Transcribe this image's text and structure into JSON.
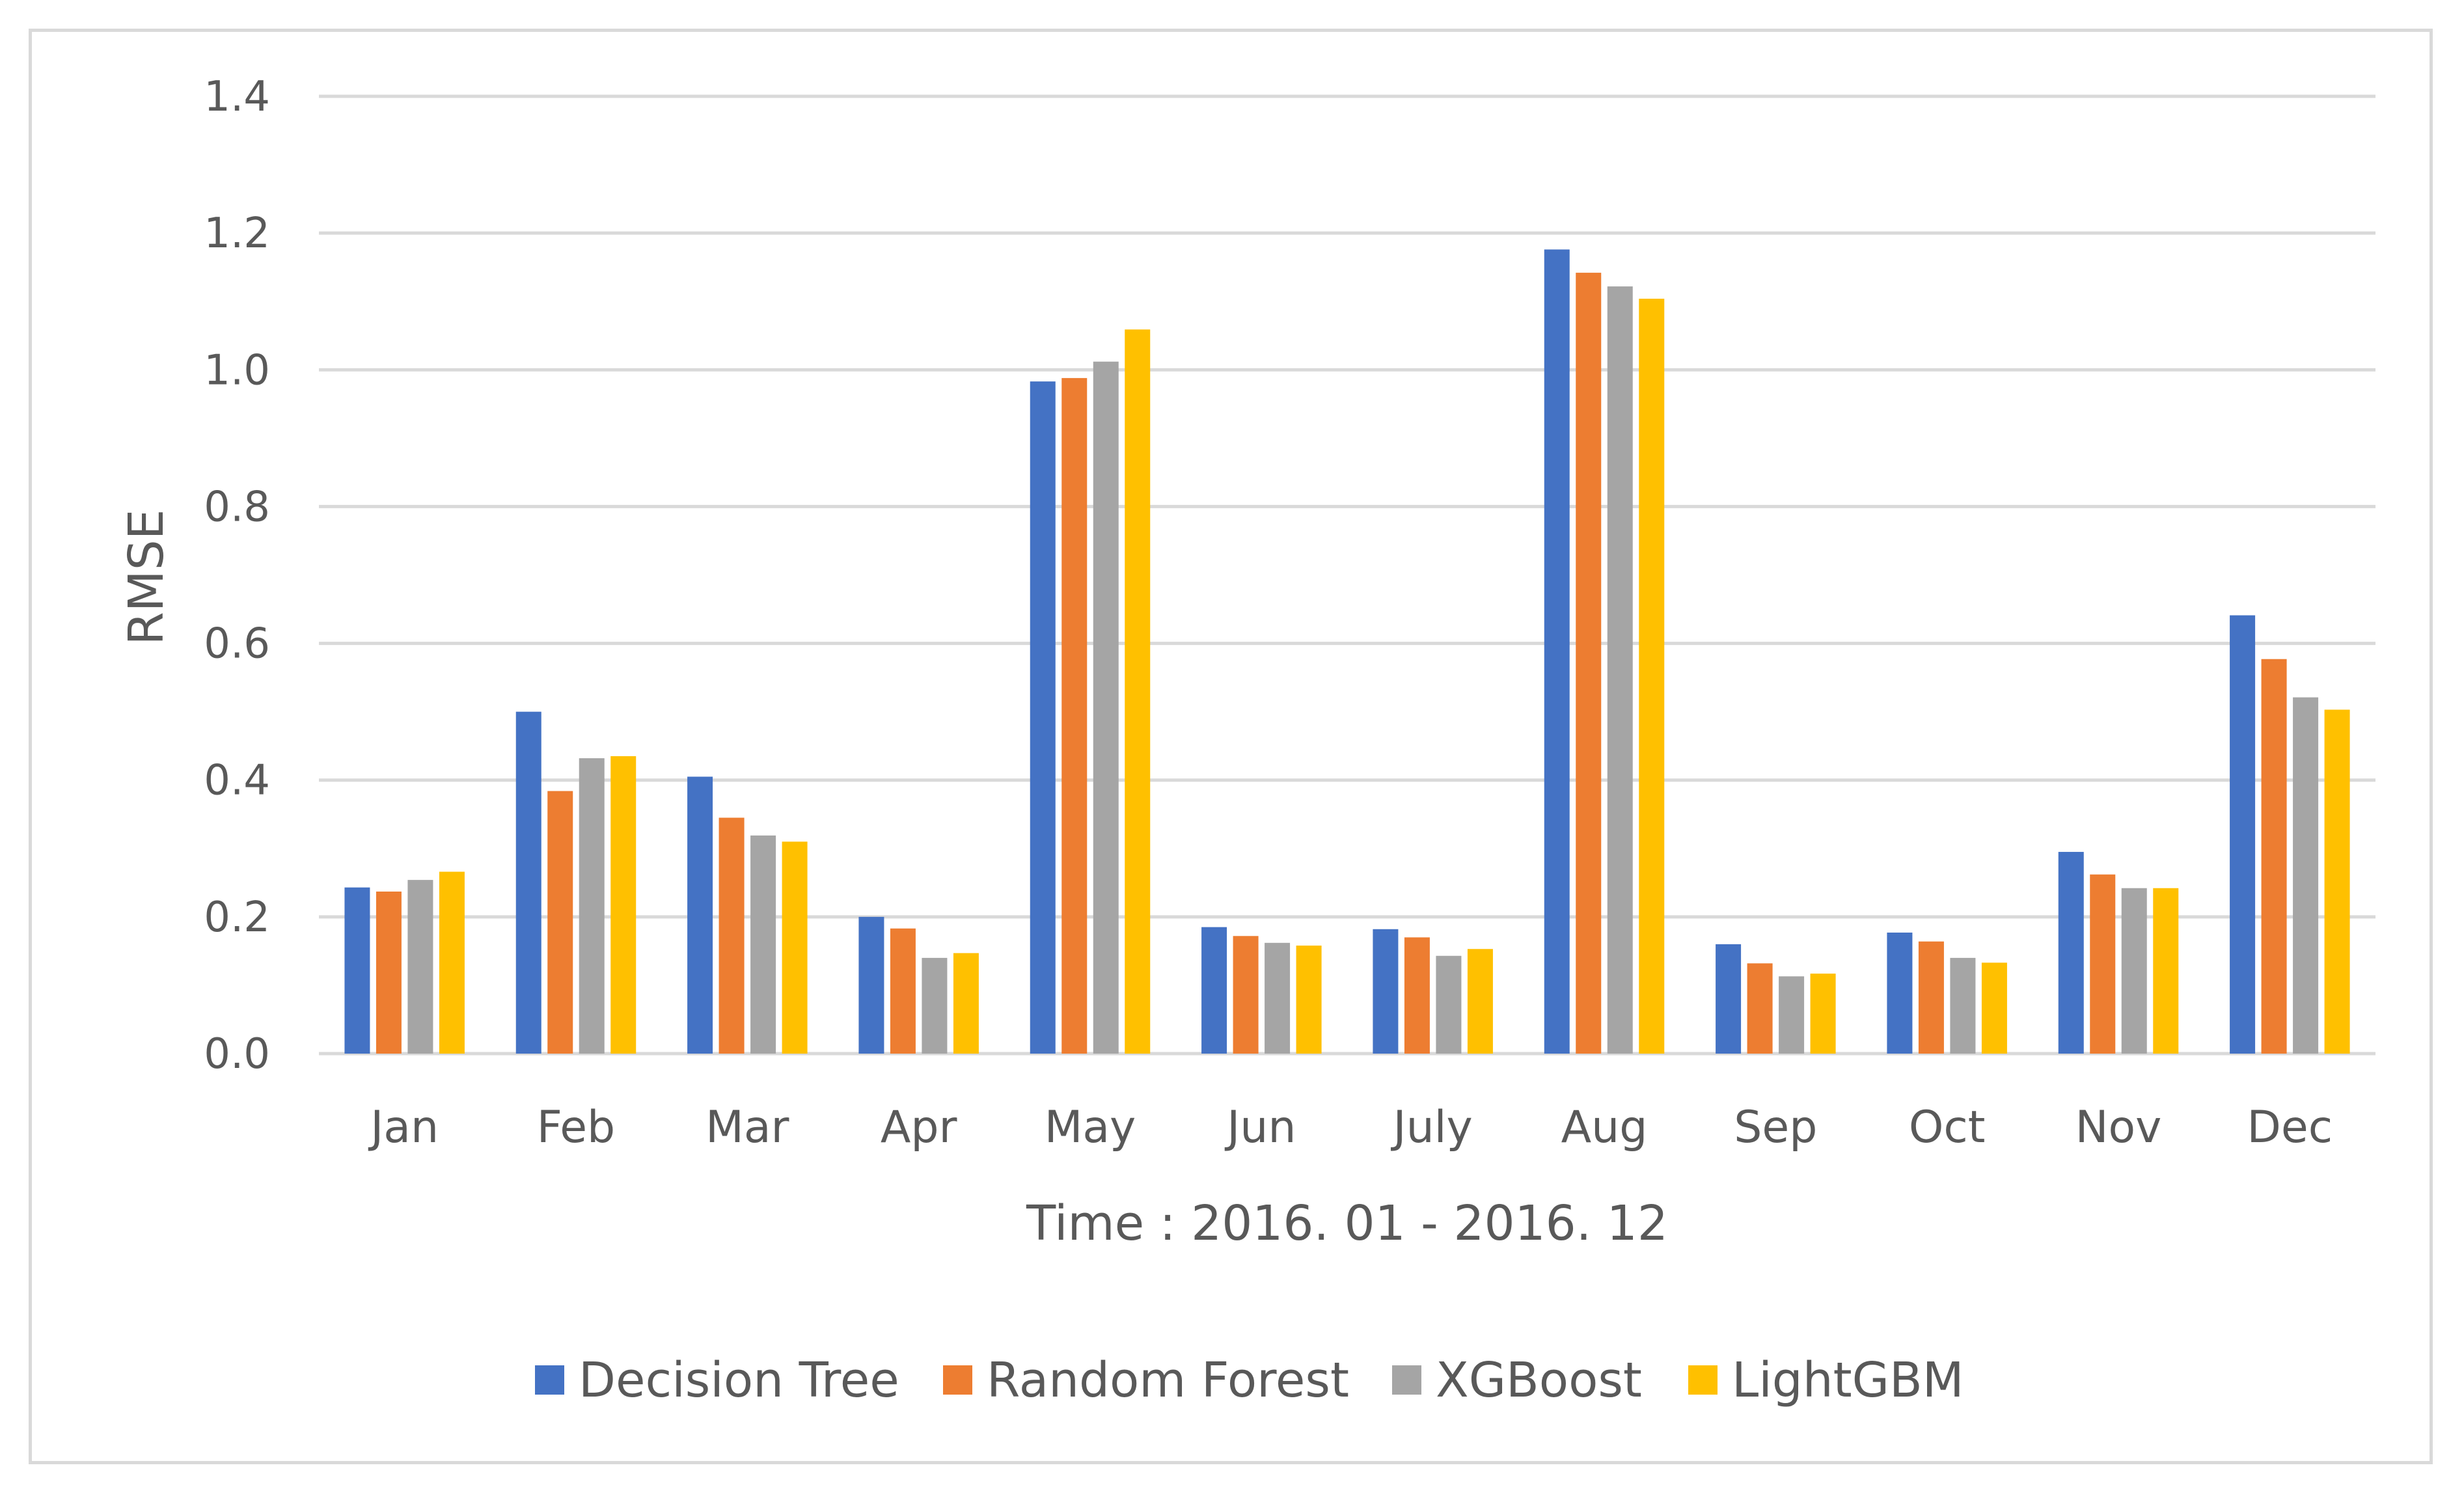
{
  "chart_data": {
    "type": "bar",
    "title": "",
    "xlabel": "Time : 2016. 01 - 2016. 12",
    "ylabel": "RMSE",
    "ylim": [
      0,
      1.4
    ],
    "yticks": [
      "0.0",
      "0.2",
      "0.4",
      "0.6",
      "0.8",
      "1.0",
      "1.2",
      "1.4"
    ],
    "grid": true,
    "legend_position": "bottom",
    "categories": [
      "Jan",
      "Feb",
      "Mar",
      "Apr",
      "May",
      "Jun",
      "July",
      "Aug",
      "Sep",
      "Oct",
      "Nov",
      "Dec"
    ],
    "series": [
      {
        "name": "Decision Tree",
        "color": "#4472c4",
        "values": [
          0.243,
          0.5,
          0.405,
          0.2,
          0.983,
          0.185,
          0.182,
          1.176,
          0.16,
          0.177,
          0.295,
          0.641
        ]
      },
      {
        "name": "Random Forest",
        "color": "#ed7d31",
        "values": [
          0.237,
          0.384,
          0.345,
          0.183,
          0.988,
          0.172,
          0.17,
          1.142,
          0.132,
          0.164,
          0.262,
          0.577
        ]
      },
      {
        "name": "XGBoost",
        "color": "#a5a5a5",
        "values": [
          0.254,
          0.432,
          0.319,
          0.14,
          1.012,
          0.162,
          0.143,
          1.122,
          0.113,
          0.14,
          0.242,
          0.521
        ]
      },
      {
        "name": "LightGBM",
        "color": "#ffc000",
        "values": [
          0.266,
          0.435,
          0.31,
          0.147,
          1.059,
          0.158,
          0.153,
          1.104,
          0.117,
          0.133,
          0.242,
          0.503
        ]
      }
    ]
  }
}
